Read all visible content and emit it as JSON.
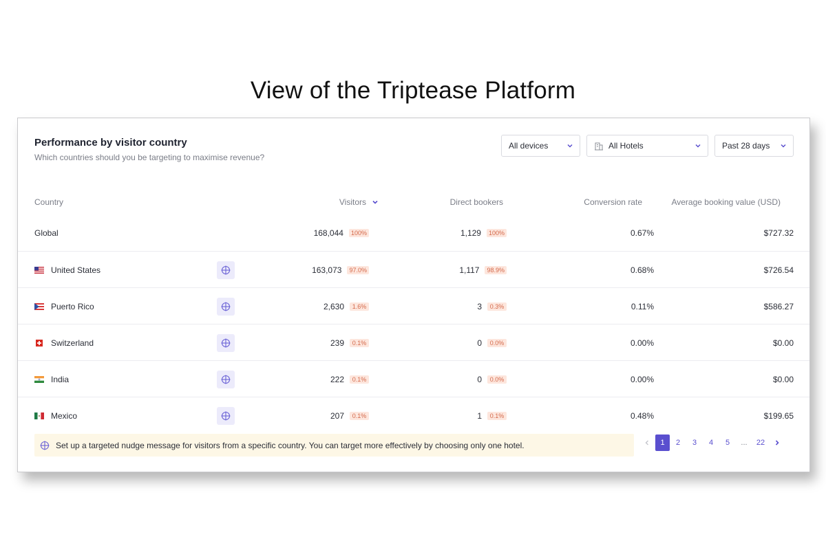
{
  "page": {
    "title": "View of the Triptease Platform"
  },
  "panel": {
    "title": "Performance by visitor country",
    "subtitle": "Which countries should you be targeting to maximise revenue?"
  },
  "filters": {
    "devices": "All devices",
    "hotels": "All Hotels",
    "dates": "Past 28 days"
  },
  "columns": {
    "country": "Country",
    "visitors": "Visitors",
    "direct_bookers": "Direct bookers",
    "conversion_rate": "Conversion rate",
    "average_booking_value": "Average booking value (USD)"
  },
  "global": {
    "country": "Global",
    "visitors": "168,044",
    "visitors_share": "100%",
    "direct_bookers": "1,129",
    "direct_bookers_share": "100%",
    "conversion_rate": "0.67%",
    "average_booking_value": "$727.32"
  },
  "rows": [
    {
      "country": "United States",
      "flag": "us-flag-icon",
      "visitors": "163,073",
      "visitors_share": "97.0%",
      "direct_bookers": "1,117",
      "direct_bookers_share": "98.9%",
      "conversion_rate": "0.68%",
      "average_booking_value": "$726.54"
    },
    {
      "country": "Puerto Rico",
      "flag": "pr-flag-icon",
      "visitors": "2,630",
      "visitors_share": "1.6%",
      "direct_bookers": "3",
      "direct_bookers_share": "0.3%",
      "conversion_rate": "0.11%",
      "average_booking_value": "$586.27"
    },
    {
      "country": "Switzerland",
      "flag": "ch-flag-icon",
      "visitors": "239",
      "visitors_share": "0.1%",
      "direct_bookers": "0",
      "direct_bookers_share": "0.0%",
      "conversion_rate": "0.00%",
      "average_booking_value": "$0.00"
    },
    {
      "country": "India",
      "flag": "in-flag-icon",
      "visitors": "222",
      "visitors_share": "0.1%",
      "direct_bookers": "0",
      "direct_bookers_share": "0.0%",
      "conversion_rate": "0.00%",
      "average_booking_value": "$0.00"
    },
    {
      "country": "Mexico",
      "flag": "mx-flag-icon",
      "visitors": "207",
      "visitors_share": "0.1%",
      "direct_bookers": "1",
      "direct_bookers_share": "0.1%",
      "conversion_rate": "0.48%",
      "average_booking_value": "$199.65"
    }
  ],
  "nudge": {
    "text": "Set up a targeted nudge message for visitors from a specific country. You can target more effectively by choosing only one hotel.",
    "icon": "crosshair-icon"
  },
  "pagination": {
    "pages": [
      "1",
      "2",
      "3",
      "4",
      "5"
    ],
    "ellipsis": "...",
    "last": "22",
    "current": "1"
  },
  "colors": {
    "accent": "#5a4fcf",
    "badge_text": "#d46a4c",
    "badge_bg": "#fde6dd",
    "nudge_bg": "#fdf7e6"
  }
}
